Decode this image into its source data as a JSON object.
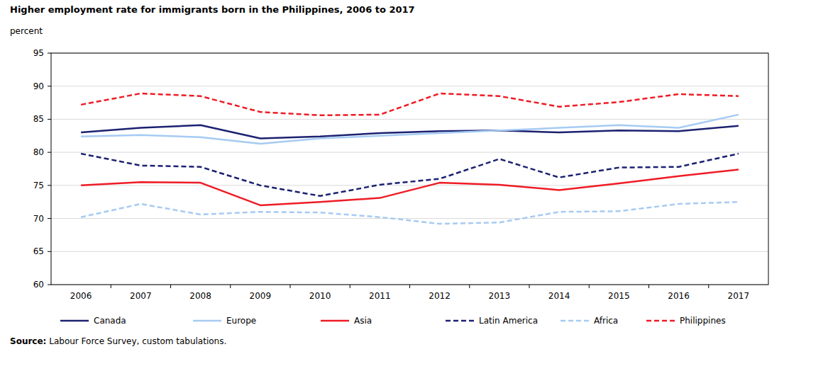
{
  "chart_data": {
    "type": "line",
    "title": "Higher employment rate for immigrants born in the Philippines, 2006 to 2017",
    "y_label": "percent",
    "source": "Source: Labour Force Survey, custom tabulations.",
    "categories": [
      "2006",
      "2007",
      "2008",
      "2009",
      "2010",
      "2011",
      "2012",
      "2013",
      "2014",
      "2015",
      "2016",
      "2017"
    ],
    "series": [
      {
        "name": "Canada",
        "color": "#1c2171",
        "line_style": "solid",
        "values": [
          83.0,
          83.7,
          84.1,
          82.1,
          82.4,
          82.9,
          83.2,
          83.3,
          83.0,
          83.3,
          83.2,
          84.0
        ]
      },
      {
        "name": "Europe",
        "color": "#a6cbf3",
        "line_style": "solid",
        "values": [
          82.4,
          82.6,
          82.3,
          81.3,
          82.1,
          82.5,
          82.9,
          83.3,
          83.7,
          84.1,
          83.7,
          85.7
        ]
      },
      {
        "name": "Asia",
        "color": "#ee1c25",
        "line_style": "solid",
        "values": [
          75.0,
          75.5,
          75.4,
          72.0,
          72.5,
          73.1,
          75.4,
          75.1,
          74.3,
          75.3,
          76.4,
          77.4
        ]
      },
      {
        "name": "Latin America",
        "color": "#1c2171",
        "line_style": "dashed",
        "values": [
          79.8,
          78.0,
          77.8,
          75.0,
          73.4,
          75.1,
          76.0,
          79.0,
          76.2,
          77.7,
          77.8,
          79.8
        ]
      },
      {
        "name": "Africa",
        "color": "#a6cbf3",
        "line_style": "dashed",
        "values": [
          70.2,
          72.2,
          70.6,
          71.0,
          70.9,
          70.2,
          69.2,
          69.4,
          71.0,
          71.1,
          72.2,
          72.5
        ]
      },
      {
        "name": "Philippines",
        "color": "#ee1c25",
        "line_style": "dashed",
        "values": [
          87.2,
          88.9,
          88.5,
          86.1,
          85.6,
          85.7,
          88.9,
          88.5,
          86.9,
          87.6,
          88.8,
          88.5
        ]
      }
    ],
    "ylim": [
      60,
      95
    ],
    "yticks": [
      60,
      65,
      70,
      75,
      80,
      85,
      90,
      95
    ],
    "grid": true,
    "legend": "bottom"
  }
}
